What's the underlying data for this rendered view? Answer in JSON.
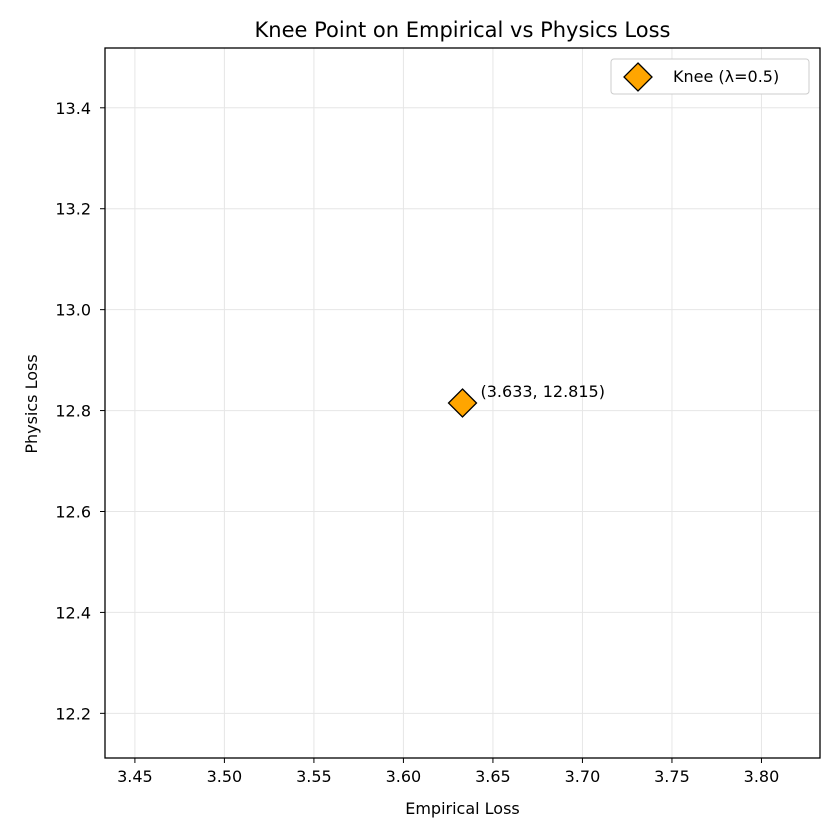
{
  "chart_data": {
    "type": "scatter",
    "title": "Knee Point on Empirical vs Physics Loss",
    "xlabel": "Empirical Loss",
    "ylabel": "Physics Loss",
    "xlim": [
      3.4333,
      3.8327
    ],
    "ylim": [
      12.1115,
      13.5185
    ],
    "xticks": [
      3.45,
      3.5,
      3.55,
      3.6,
      3.65,
      3.7,
      3.75,
      3.8
    ],
    "xtick_labels": [
      "3.45",
      "3.50",
      "3.55",
      "3.60",
      "3.65",
      "3.70",
      "3.75",
      "3.80"
    ],
    "yticks": [
      12.2,
      12.4,
      12.6,
      12.8,
      13.0,
      13.2,
      13.4
    ],
    "ytick_labels": [
      "12.2",
      "12.4",
      "12.6",
      "12.8",
      "13.0",
      "13.2",
      "13.4"
    ],
    "grid": true,
    "legend_position": "top-right",
    "series": [
      {
        "name": "Knee (λ=0.5)",
        "marker": "diamond",
        "color": "#FFA500",
        "edge_color": "#000000",
        "points": [
          {
            "x": 3.633,
            "y": 12.815
          }
        ]
      }
    ],
    "annotations": [
      {
        "text": "(3.633, 12.815)",
        "x": 3.633,
        "y": 12.815
      }
    ]
  }
}
